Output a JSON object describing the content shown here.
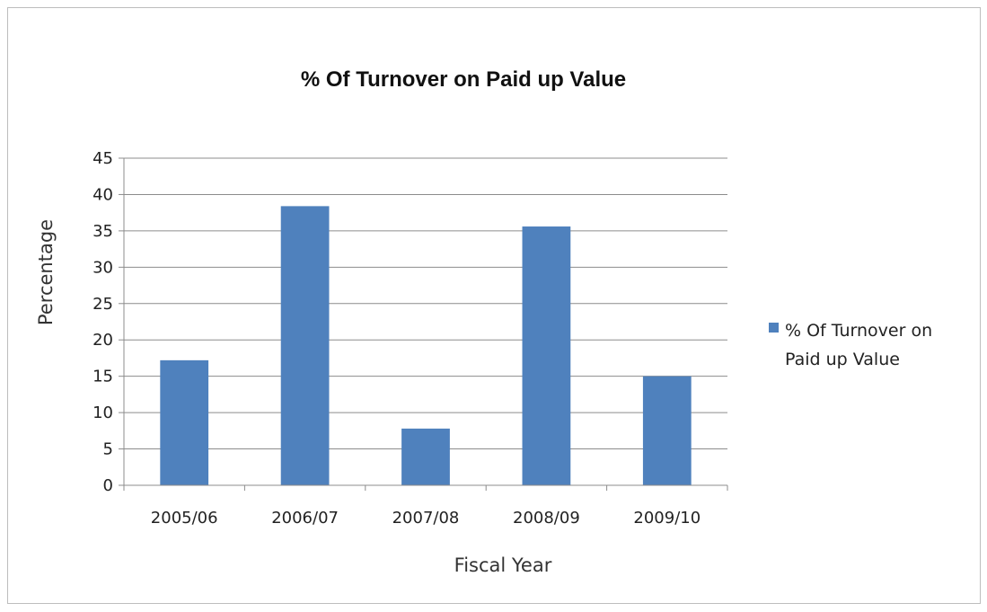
{
  "chart_data": {
    "type": "bar",
    "title": "% Of Turnover on Paid up Value",
    "xlabel": "Fiscal Year",
    "ylabel": "Percentage",
    "categories": [
      "2005/06",
      "2006/07",
      "2007/08",
      "2008/09",
      "2009/10"
    ],
    "series": [
      {
        "name": "% Of Turnover on Paid up Value",
        "values": [
          17.2,
          38.4,
          7.8,
          35.6,
          15.0
        ],
        "color": "#4f81bd"
      }
    ],
    "ylim": [
      0,
      45
    ],
    "yticks": [
      "0",
      "5",
      "10",
      "15",
      "20",
      "25",
      "30",
      "35",
      "40",
      "45"
    ],
    "grid": true,
    "legend": {
      "position": "right",
      "lines": [
        "% Of Turnover on",
        "Paid up Value"
      ]
    }
  }
}
